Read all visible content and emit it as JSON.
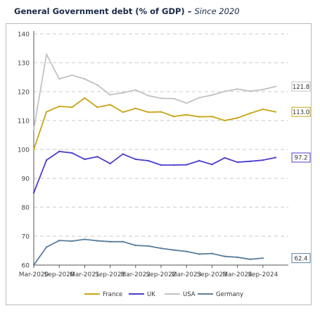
{
  "header": {
    "title": "General Government debt (% of GDP) –",
    "subtitle": "Since 2020"
  },
  "chart_data": {
    "type": "line",
    "title": "General Government debt (% of GDP) – Since 2020",
    "xlabel": "",
    "ylabel": "",
    "ylim": [
      60,
      140
    ],
    "yticks": [
      60,
      70,
      80,
      90,
      100,
      110,
      120,
      130,
      140
    ],
    "xlim": [
      "2020-03",
      "2025-03"
    ],
    "x_tick_labels": [
      "Mar-2020",
      "Sep-2020",
      "Mar-2021",
      "Sep-2021",
      "Mar-2022",
      "Sep-2022",
      "Mar-2023",
      "Sep-2023",
      "Mar-2024",
      "Sep-2024"
    ],
    "x": [
      "2020-03",
      "2020-06",
      "2020-09",
      "2020-12",
      "2021-03",
      "2021-06",
      "2021-09",
      "2021-12",
      "2022-03",
      "2022-06",
      "2022-09",
      "2022-12",
      "2023-03",
      "2023-06",
      "2023-09",
      "2023-12",
      "2024-03",
      "2024-06",
      "2024-09",
      "2024-12",
      "2025-03"
    ],
    "grid": "horizontal dashed",
    "legend_position": "bottom",
    "series": [
      {
        "name": "France",
        "color": "#c8a415",
        "end_label": "113.0",
        "values": [
          100.0,
          113.0,
          114.9,
          114.6,
          117.8,
          114.6,
          115.5,
          112.9,
          114.2,
          112.9,
          113.0,
          111.4,
          112.0,
          111.3,
          111.4,
          110.0,
          110.9,
          112.5,
          113.9,
          113.0,
          null
        ]
      },
      {
        "name": "UK",
        "color": "#4a3ecb",
        "end_label": "97.2",
        "values": [
          85.0,
          96.3,
          99.3,
          98.8,
          96.6,
          97.5,
          95.1,
          98.4,
          96.6,
          96.1,
          94.6,
          94.6,
          94.7,
          96.1,
          94.8,
          97.1,
          95.6,
          95.9,
          96.3,
          97.2,
          null
        ]
      },
      {
        "name": "USA",
        "color": "#c2c2c2",
        "end_label": "121.8",
        "values": [
          106.9,
          132.9,
          124.4,
          125.7,
          124.4,
          122.3,
          118.9,
          119.6,
          120.6,
          118.6,
          117.7,
          117.6,
          116.0,
          117.9,
          118.8,
          120.1,
          120.9,
          120.2,
          120.7,
          121.8,
          null
        ]
      },
      {
        "name": "Germany",
        "color": "#5a7e9e",
        "end_label": "62.4",
        "values": [
          60.0,
          66.2,
          68.5,
          68.3,
          68.9,
          68.4,
          68.1,
          68.1,
          66.8,
          66.6,
          65.8,
          65.2,
          64.7,
          63.8,
          64.0,
          63.0,
          62.7,
          62.0,
          62.4,
          null,
          null
        ]
      }
    ]
  }
}
